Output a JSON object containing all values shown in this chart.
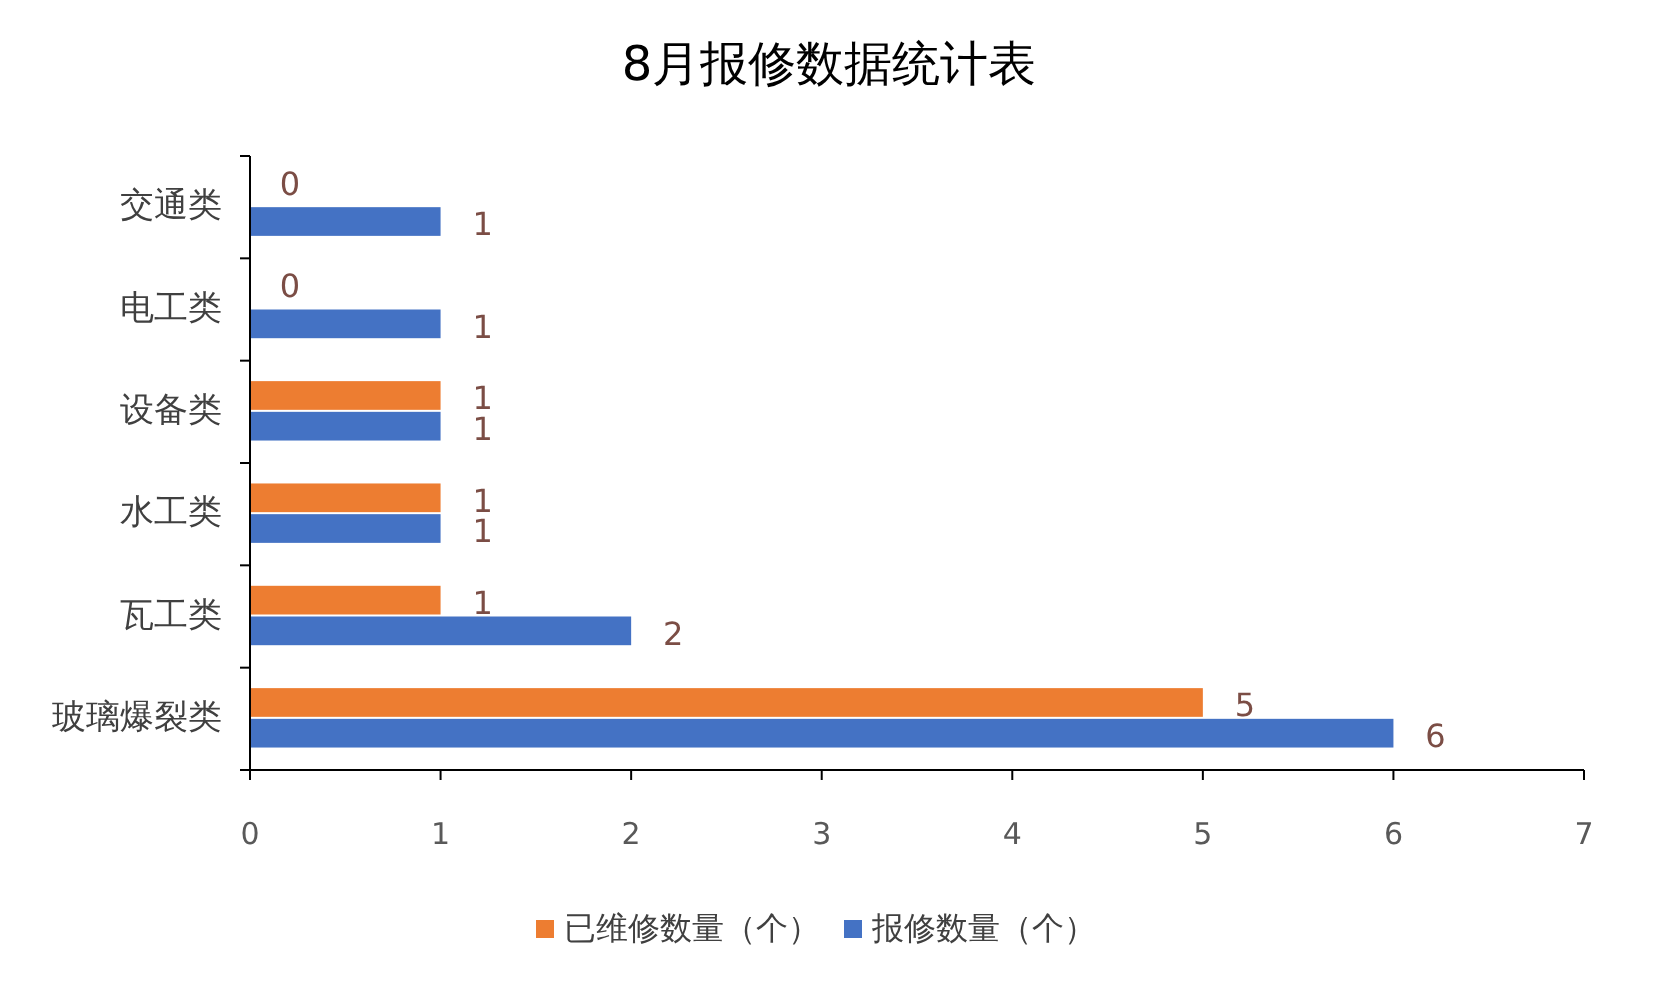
{
  "chart_data": {
    "type": "bar",
    "orientation": "horizontal",
    "title": "8月报修数据统计表",
    "categories": [
      "交通类",
      "电工类",
      "设备类",
      "水工类",
      "瓦工类",
      "玻璃爆裂类"
    ],
    "series": [
      {
        "name": "已维修数量（个）",
        "color": "#ed7d31",
        "values": [
          0,
          0,
          1,
          1,
          1,
          5
        ]
      },
      {
        "name": "报修数量（个）",
        "color": "#4472c4",
        "values": [
          1,
          1,
          1,
          1,
          2,
          6
        ]
      }
    ],
    "xlim": [
      0,
      7
    ],
    "xticks": [
      0,
      1,
      2,
      3,
      4,
      5,
      6,
      7
    ],
    "grid": false,
    "legend": "bottom",
    "data_labels": true
  }
}
